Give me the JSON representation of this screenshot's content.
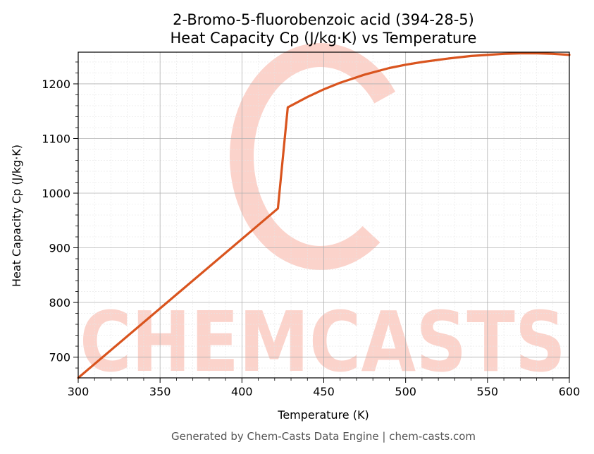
{
  "chart_data": {
    "type": "line",
    "title": "2-Bromo-5-fluorobenzoic acid (394-28-5)",
    "subtitle": "Heat Capacity Cp (J/kg·K) vs Temperature",
    "xlabel": "Temperature (K)",
    "ylabel": "Heat Capacity Cp (J/kg·K)",
    "xlim": [
      300,
      600
    ],
    "ylim": [
      662,
      1258
    ],
    "xticks": [
      300,
      350,
      400,
      450,
      500,
      550,
      600
    ],
    "yticks": [
      700,
      800,
      900,
      1000,
      1100,
      1200
    ],
    "grid": true,
    "legend": "none",
    "series": [
      {
        "color": "#d9541e",
        "x": [
          300,
          422,
          428,
          440,
          450,
          460,
          475,
          490,
          500,
          510,
          525,
          540,
          550,
          560,
          570,
          580,
          590,
          600
        ],
        "y": [
          662,
          972,
          1157,
          1176,
          1190,
          1202,
          1217,
          1229,
          1235,
          1240,
          1246,
          1251,
          1253,
          1255,
          1256,
          1256,
          1255,
          1253
        ]
      }
    ]
  },
  "watermark": {
    "text": "CHEMCASTS",
    "color": "#fbd3cb"
  },
  "footer": "Generated by Chem-Casts Data Engine | chem-casts.com"
}
